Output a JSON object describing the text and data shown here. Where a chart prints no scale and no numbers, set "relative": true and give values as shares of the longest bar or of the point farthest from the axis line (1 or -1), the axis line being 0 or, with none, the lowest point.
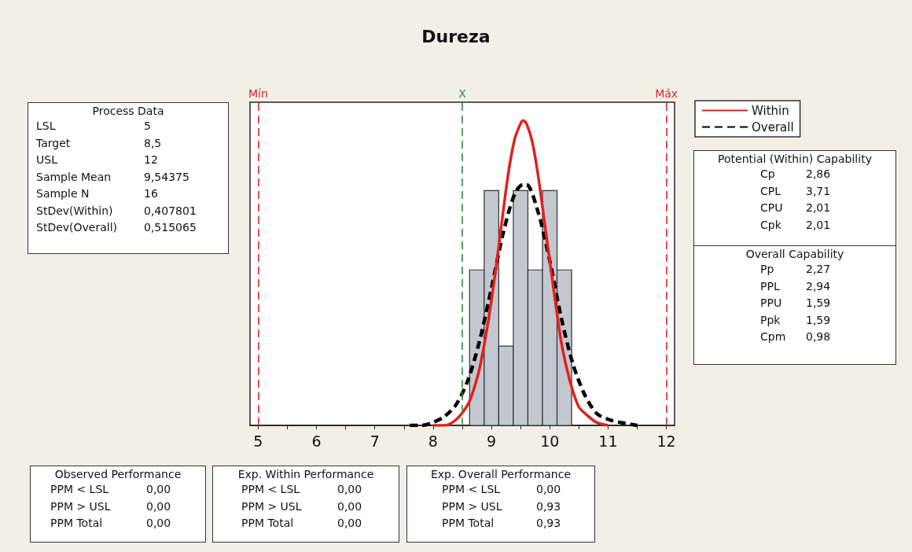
{
  "chart_data": {
    "type": "histogram",
    "title": "Dureza",
    "relative": true,
    "bins": [
      8.625,
      8.875,
      9.125,
      9.375,
      9.625,
      9.875,
      10.125,
      10.375
    ],
    "values": [
      0.51,
      0.77,
      0.26,
      0.77,
      0.51,
      0.77,
      0.51
    ],
    "color": "#c3c7cf",
    "series": [
      {
        "name": "Within",
        "type": "line",
        "color": "#e3201b",
        "line_style": "solid",
        "x": [
          8.0,
          8.2,
          8.4,
          8.6,
          8.7,
          8.8,
          8.9,
          9.0,
          9.1,
          9.2,
          9.3,
          9.4,
          9.5,
          9.544,
          9.6,
          9.7,
          9.8,
          9.9,
          10.0,
          10.1,
          10.2,
          10.3,
          10.4,
          10.5,
          10.6,
          10.8,
          11.0
        ],
        "values": [
          0,
          0,
          0.02,
          0.07,
          0.12,
          0.19,
          0.29,
          0.41,
          0.55,
          0.7,
          0.84,
          0.94,
          0.99,
          1,
          0.99,
          0.93,
          0.82,
          0.68,
          0.54,
          0.4,
          0.27,
          0.18,
          0.11,
          0.06,
          0.04,
          0.01,
          0
        ]
      },
      {
        "name": "Overall",
        "type": "line",
        "color": "#000000",
        "line_style": "dashed",
        "x": [
          7.6,
          7.8,
          8.0,
          8.2,
          8.4,
          8.6,
          8.8,
          9.0,
          9.2,
          9.4,
          9.544,
          9.6,
          9.8,
          10.0,
          10.2,
          10.4,
          10.6,
          10.8,
          11.0,
          11.2,
          11.5
        ],
        "values": [
          0,
          0,
          0.01,
          0.03,
          0.07,
          0.15,
          0.28,
          0.45,
          0.63,
          0.76,
          0.79,
          0.79,
          0.7,
          0.54,
          0.35,
          0.2,
          0.1,
          0.04,
          0.02,
          0.01,
          0
        ]
      }
    ],
    "xlim": [
      4.86,
      12.14
    ],
    "xticks": [
      5,
      {
        "value": 5.5,
        "label": null
      },
      6,
      {
        "value": 6.5,
        "label": null
      },
      7,
      {
        "value": 7.5,
        "label": null
      },
      8,
      {
        "value": 8.5,
        "label": null
      },
      9,
      {
        "value": 9.5,
        "label": null
      },
      10,
      {
        "value": 10.5,
        "label": null
      },
      11,
      {
        "value": 11.5,
        "label": null
      },
      12
    ],
    "ref_lines": [
      {
        "axis": "x",
        "value": 5,
        "label": "Mín",
        "color": "#d9252a",
        "line_style": "dashed"
      },
      {
        "axis": "x",
        "value": 8.5,
        "label": "X",
        "color": "#2e8b3e",
        "line_style": "dashed"
      },
      {
        "axis": "x",
        "value": 12,
        "label": "Máx",
        "color": "#d9252a",
        "line_style": "dashed"
      }
    ],
    "legend": "top right",
    "grid": false,
    "annotations": [
      "Process Data",
      "LSL\t5",
      "Target\t8,5",
      "USL\t12",
      "Sample Mean\t9,54375",
      "Sample N\t16",
      "StDev(Within)\t0,407801",
      "StDev(Overall)\t0,515065",
      "Potential (Within) Capability",
      "Cp\t2,86",
      "CPL\t3,71",
      "CPU\t2,01",
      "Cpk\t2,01",
      "Overall Capability",
      "Pp\t2,27",
      "PPL\t2,94",
      "PPU\t1,59",
      "Ppk\t1,59",
      "Cpm\t0,98",
      "Observed Performance",
      "PPM < LSL\t0,00",
      "PPM > USL\t0,00",
      "PPM Total\t0,00",
      "Exp. Within Performance",
      "PPM < LSL\t0,00",
      "PPM > USL\t0,00",
      "PPM Total\t0,00",
      "Exp. Overall Performance",
      "PPM < LSL\t0,00",
      "PPM > USL\t0,93",
      "PPM Total\t0,93"
    ]
  }
}
